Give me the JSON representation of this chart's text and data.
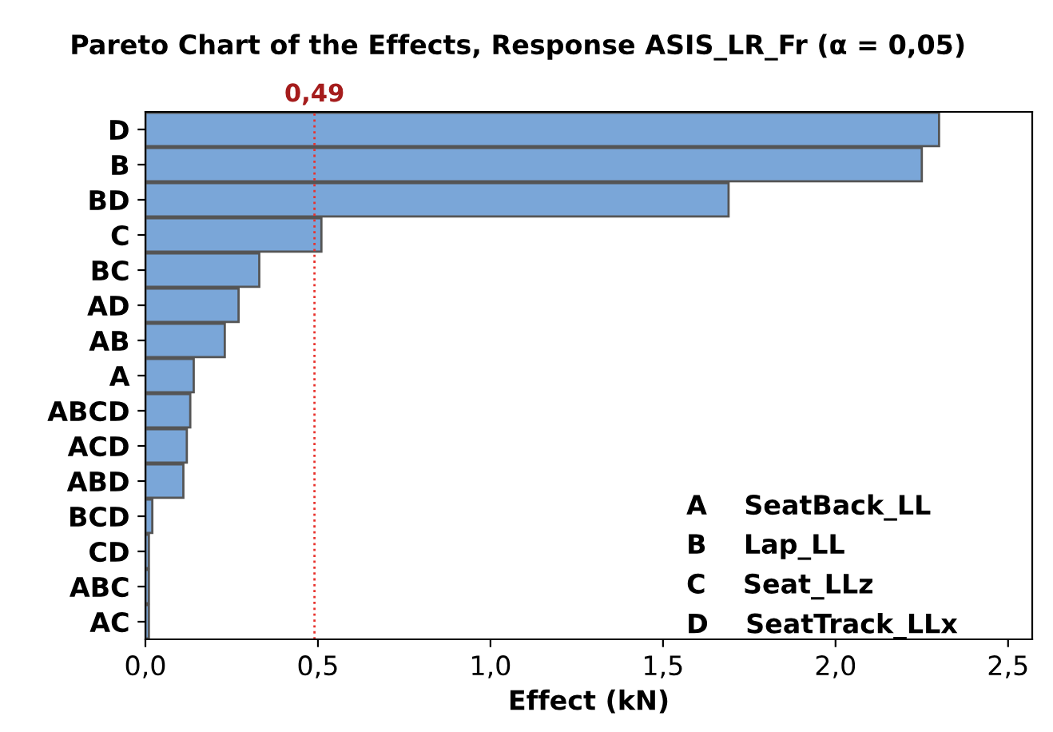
{
  "chart_data": {
    "type": "bar",
    "orientation": "horizontal",
    "title": "Pareto Chart of the Effects, Response ASIS_LR_Fr (α = 0,05)",
    "xlabel": "Effect (kN)",
    "categories": [
      "D",
      "B",
      "BD",
      "C",
      "BC",
      "AD",
      "AB",
      "A",
      "ABCD",
      "ACD",
      "ABD",
      "BCD",
      "CD",
      "ABC",
      "AC"
    ],
    "values": [
      2.3,
      2.25,
      1.69,
      0.51,
      0.33,
      0.27,
      0.23,
      0.14,
      0.13,
      0.12,
      0.11,
      0.02,
      0.01,
      0.01,
      0.01
    ],
    "color": "#7aa6d8",
    "xlim": [
      0,
      2.57
    ],
    "xticks": [
      {
        "value": 0,
        "label": "0,0"
      },
      {
        "value": 0.5,
        "label": "0,5"
      },
      {
        "value": 1,
        "label": "1,0"
      },
      {
        "value": 1.5,
        "label": "1,5"
      },
      {
        "value": 2,
        "label": "2,0"
      },
      {
        "value": 2.5,
        "label": "2,5"
      }
    ],
    "ref_lines": [
      {
        "axis": "x",
        "value": 0.49,
        "label": "0,49",
        "color": "#e8322d",
        "line_style": "dotted"
      }
    ],
    "annotations": [
      "A    SeatBack_LL",
      "B    Lap_LL",
      "C    Seat_LLz",
      "D    SeatTrack_LLx"
    ],
    "grid": false,
    "legend": false
  }
}
